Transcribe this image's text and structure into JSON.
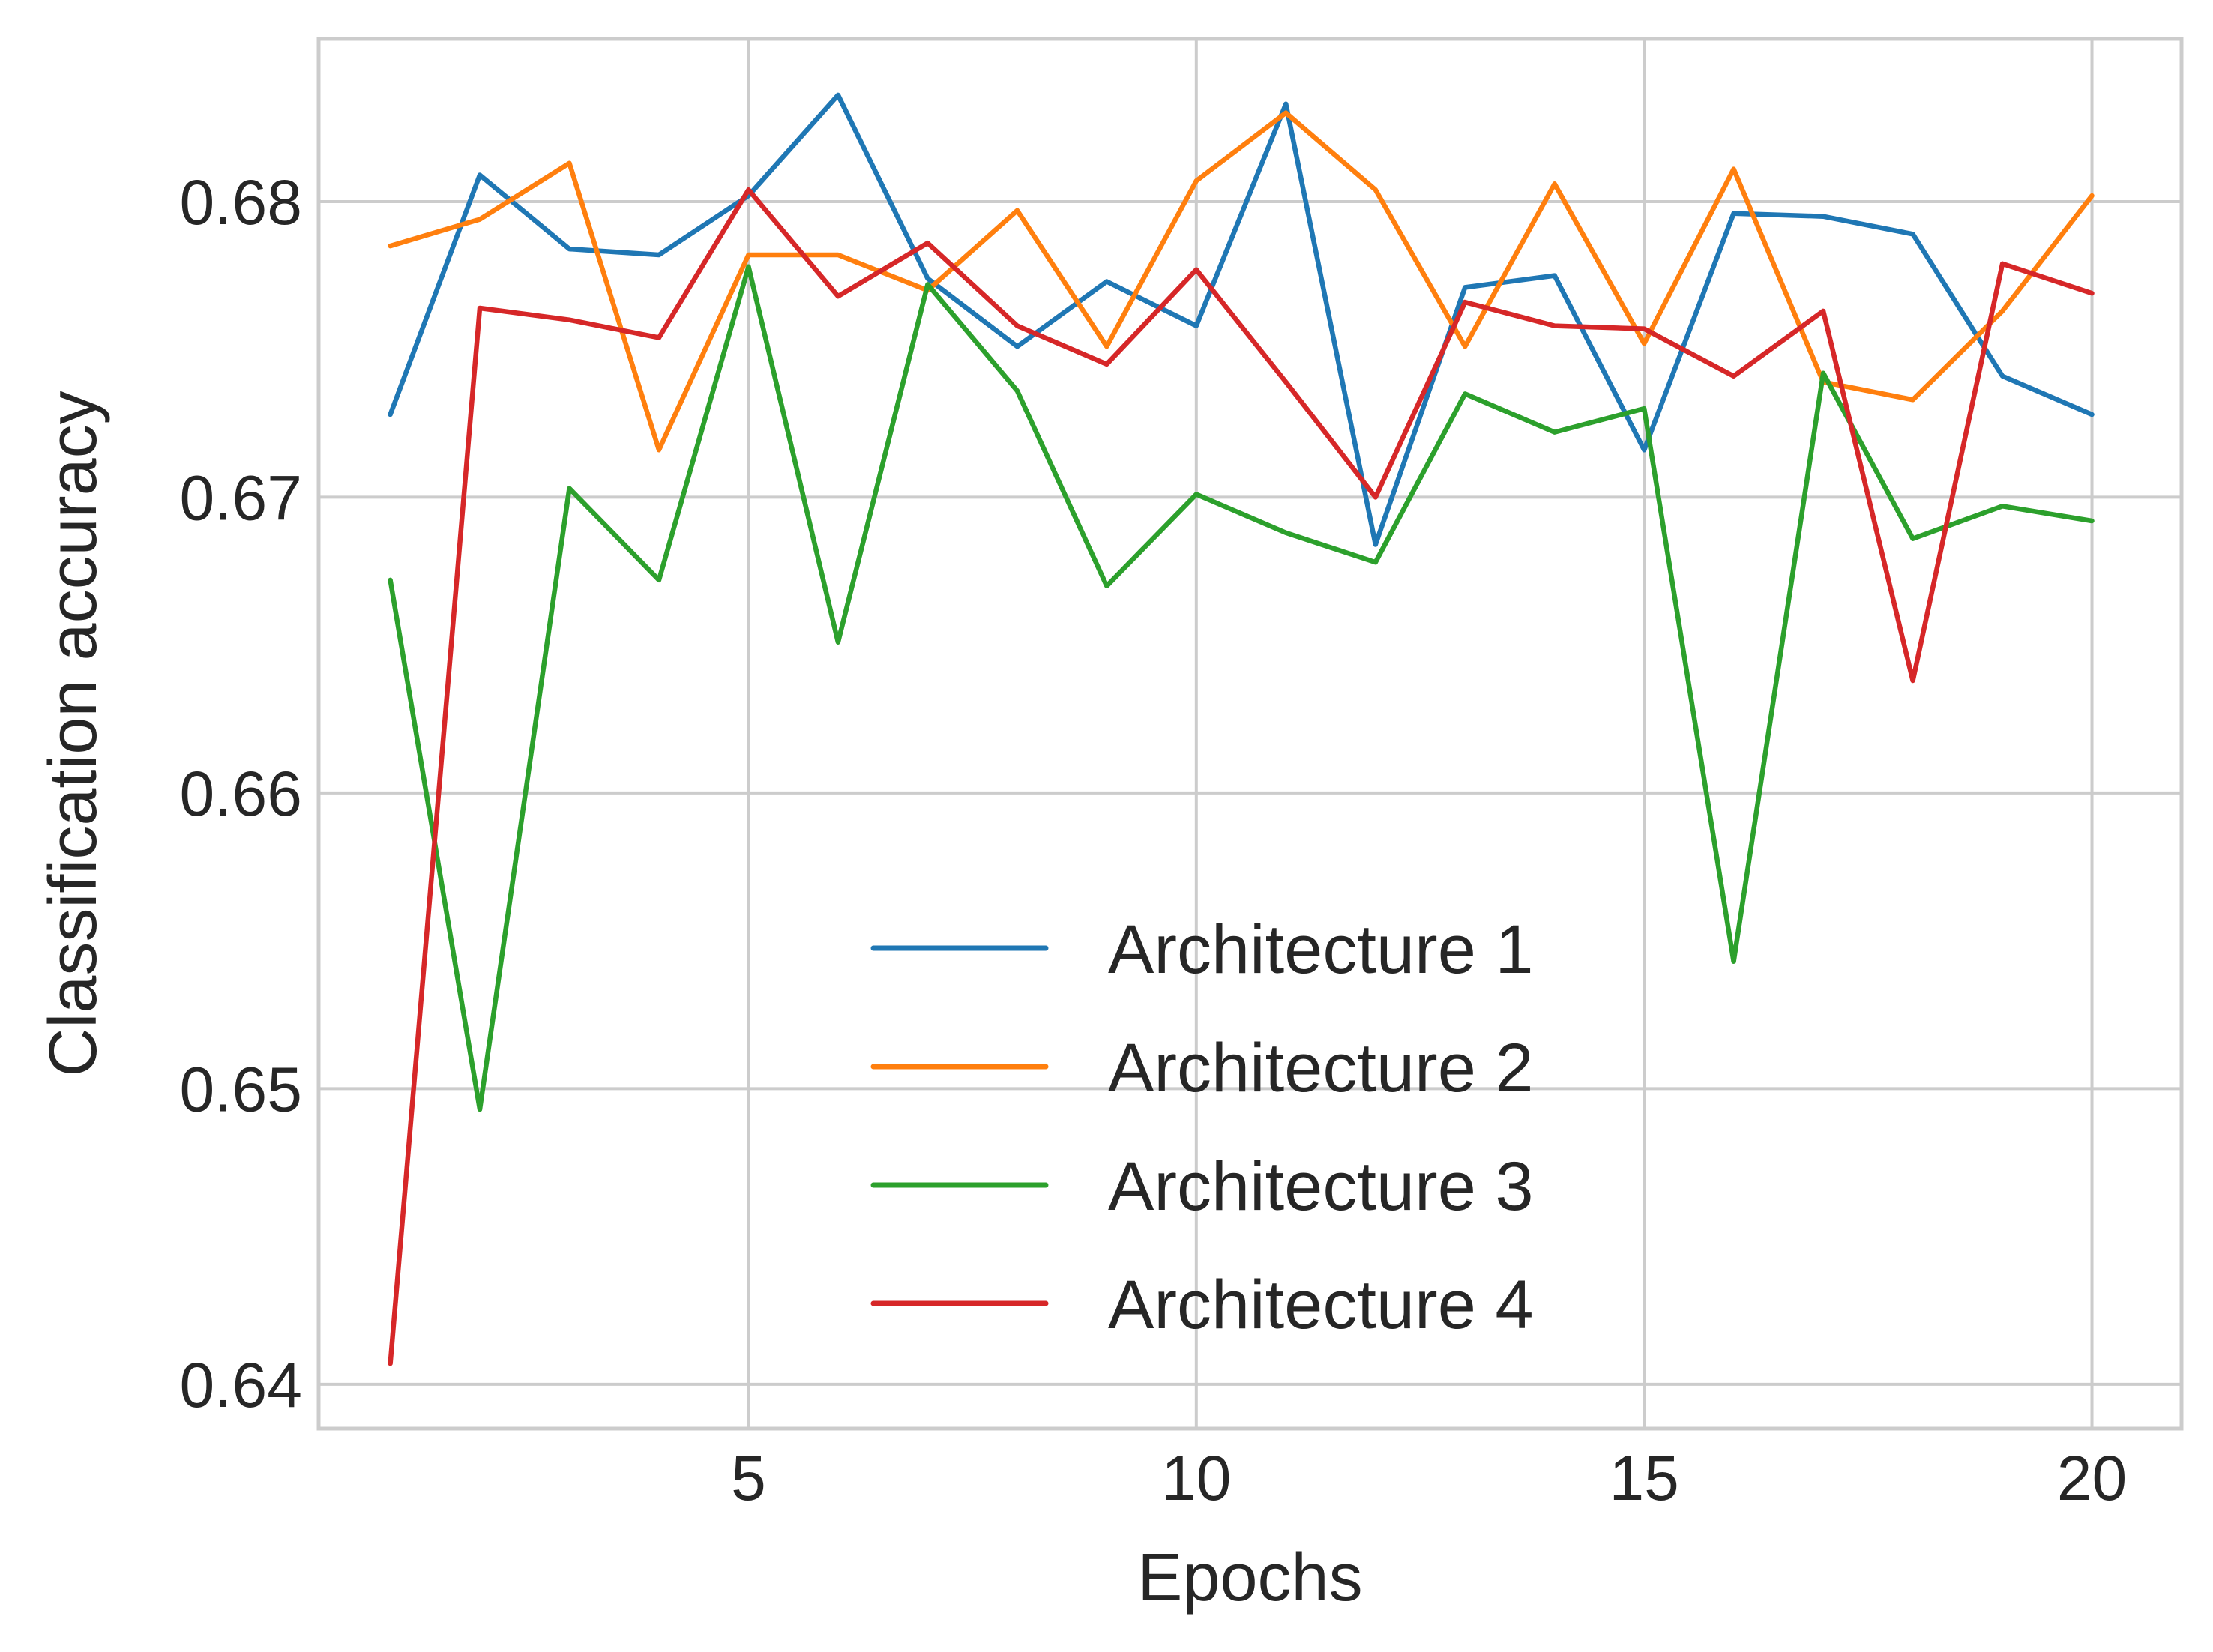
{
  "chart_data": {
    "type": "line",
    "title": "",
    "xlabel": "Epochs",
    "ylabel": "Classification accuracy",
    "xlim": [
      0.2,
      21
    ],
    "ylim": [
      0.6385,
      0.6855
    ],
    "xticks": [
      5,
      10,
      15,
      20
    ],
    "xtick_labels": [
      "5",
      "10",
      "15",
      "20"
    ],
    "yticks": [
      0.64,
      0.65,
      0.66,
      0.67,
      0.68
    ],
    "ytick_labels": [
      "0.64",
      "0.65",
      "0.66",
      "0.67",
      "0.68"
    ],
    "grid": true,
    "legend_position": "lower-center",
    "x": [
      1,
      2,
      3,
      4,
      5,
      6,
      7,
      8,
      9,
      10,
      11,
      12,
      13,
      14,
      15,
      16,
      17,
      18,
      19,
      20
    ],
    "series": [
      {
        "name": "Architecture 1",
        "color": "#1f77b4",
        "values": [
          0.6728,
          0.6809,
          0.6784,
          0.6782,
          0.6802,
          0.6836,
          0.6774,
          0.6751,
          0.6773,
          0.6758,
          0.6833,
          0.6684,
          0.6771,
          0.6775,
          0.6716,
          0.6796,
          0.6795,
          0.6789,
          0.6741,
          0.6728
        ]
      },
      {
        "name": "Architecture 2",
        "color": "#ff7f0e",
        "values": [
          0.6785,
          0.6794,
          0.6813,
          0.6716,
          0.6782,
          0.6782,
          0.677,
          0.6797,
          0.6751,
          0.6807,
          0.683,
          0.6804,
          0.6751,
          0.6806,
          0.6752,
          0.6811,
          0.6739,
          0.6733,
          0.6763,
          0.6802
        ]
      },
      {
        "name": "Architecture 3",
        "color": "#2ca02c",
        "values": [
          0.6672,
          0.6493,
          0.6703,
          0.6672,
          0.6778,
          0.6651,
          0.6772,
          0.6736,
          0.667,
          0.6701,
          0.6688,
          0.6678,
          0.6735,
          0.6722,
          0.673,
          0.6543,
          0.6742,
          0.6686,
          0.6697,
          0.6692
        ]
      },
      {
        "name": "Architecture 4",
        "color": "#d62728",
        "values": [
          0.6407,
          0.6764,
          0.676,
          0.6754,
          0.6804,
          0.6768,
          0.6786,
          0.6758,
          0.6745,
          0.6777,
          0.6739,
          0.67,
          0.6766,
          0.6758,
          0.6757,
          0.6741,
          0.6763,
          0.6638,
          0.6779,
          0.6769
        ]
      }
    ]
  }
}
